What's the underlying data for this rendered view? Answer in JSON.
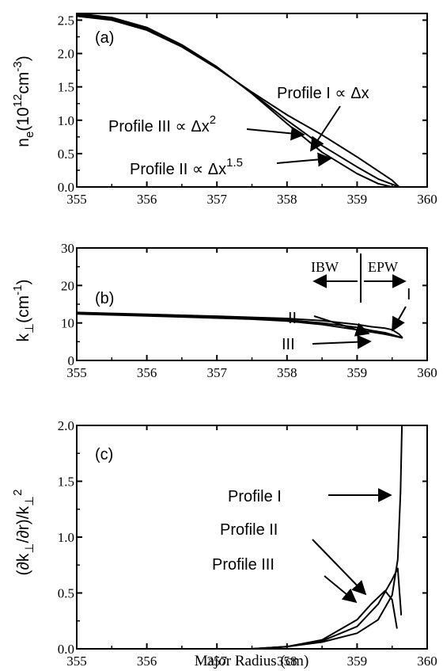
{
  "colors": {
    "ink": "#000000",
    "background": "#ffffff"
  },
  "xlabel": "Major Radius (cm)",
  "chart_data": [
    {
      "type": "line",
      "panel_label": "(a)",
      "ylabel": "n_e(10^12 cm^-3)",
      "ylabel_parts": {
        "main": "n",
        "sub": "e",
        "open": "(10",
        "sup": "12",
        "mid": "cm",
        "sup2": "-3",
        "close": ")"
      },
      "xlim": [
        355,
        360
      ],
      "ylim": [
        0,
        2.6
      ],
      "x_ticks": [
        "355",
        "356",
        "357",
        "358",
        "359",
        "360"
      ],
      "y_ticks": [
        {
          "v": 0.0,
          "t": "0.0"
        },
        {
          "v": 0.5,
          "t": "0.5"
        },
        {
          "v": 1.0,
          "t": "1.0"
        },
        {
          "v": 1.5,
          "t": "1.5"
        },
        {
          "v": 2.0,
          "t": "2.0"
        },
        {
          "v": 2.5,
          "t": "2.5"
        }
      ],
      "grid": false,
      "series": [
        {
          "name": "Profile I",
          "x": [
            355,
            355.5,
            356,
            356.5,
            357,
            357.5,
            358,
            358.5,
            359,
            359.5,
            359.6
          ],
          "y": [
            2.56,
            2.5,
            2.35,
            2.1,
            1.78,
            1.42,
            1.08,
            0.78,
            0.45,
            0.1,
            0.0
          ]
        },
        {
          "name": "Profile II",
          "x": [
            355,
            355.5,
            356,
            356.5,
            357,
            357.5,
            358,
            358.5,
            359,
            359.3,
            359.5,
            359.6
          ],
          "y": [
            2.58,
            2.52,
            2.37,
            2.12,
            1.79,
            1.41,
            1.0,
            0.62,
            0.3,
            0.12,
            0.04,
            0.0
          ]
        },
        {
          "name": "Profile III",
          "x": [
            355,
            355.5,
            356,
            356.5,
            357,
            357.5,
            358,
            358.5,
            359,
            359.3,
            359.5
          ],
          "y": [
            2.6,
            2.54,
            2.39,
            2.13,
            1.8,
            1.4,
            0.95,
            0.52,
            0.2,
            0.05,
            0.0
          ]
        }
      ],
      "annotations": [
        {
          "text": "Profile I",
          "math": "∝ Δx",
          "sup": ""
        },
        {
          "text": "Profile III",
          "math": "∝ Δx",
          "sup": "2"
        },
        {
          "text": "Profile II",
          "math": "∝ Δx",
          "sup": "1.5"
        }
      ]
    },
    {
      "type": "line",
      "panel_label": "(b)",
      "ylabel": "k_⊥(cm^-1)",
      "ylabel_parts": {
        "main": "k",
        "sub": "⊥",
        "open": "(cm",
        "sup": "-1",
        "close": ")"
      },
      "xlim": [
        355,
        360
      ],
      "ylim": [
        0,
        30
      ],
      "x_ticks": [
        "355",
        "356",
        "357",
        "358",
        "359",
        "360"
      ],
      "y_ticks": [
        {
          "v": 0,
          "t": "0"
        },
        {
          "v": 10,
          "t": "10"
        },
        {
          "v": 20,
          "t": "20"
        },
        {
          "v": 30,
          "t": "30"
        }
      ],
      "grid": false,
      "series": [
        {
          "name": "I",
          "x": [
            355,
            356,
            357,
            357.5,
            358,
            358.5,
            359,
            359.2,
            359.4,
            359.5,
            359.6,
            359.65
          ],
          "y": [
            12.8,
            12.3,
            11.8,
            11.5,
            11.2,
            10.6,
            9.6,
            9.0,
            8.6,
            8.2,
            7.0,
            6.0
          ]
        },
        {
          "name": "II",
          "x": [
            355,
            356,
            357,
            357.5,
            358,
            358.5,
            359,
            359.2,
            359.4,
            359.55,
            359.65
          ],
          "y": [
            12.6,
            12.1,
            11.5,
            11.2,
            10.8,
            10.0,
            8.8,
            8.0,
            7.4,
            6.6,
            6.0
          ]
        },
        {
          "name": "III",
          "x": [
            355,
            356,
            357,
            357.5,
            358,
            358.5,
            359,
            359.2,
            359.4,
            359.55,
            359.65
          ],
          "y": [
            12.4,
            11.9,
            11.3,
            11.0,
            10.5,
            9.6,
            8.2,
            7.6,
            7.0,
            6.4,
            6.0
          ]
        }
      ],
      "annotations": [
        {
          "text": "IBW"
        },
        {
          "text": "EPW"
        },
        {
          "text": "I"
        },
        {
          "text": "II"
        },
        {
          "text": "III"
        }
      ]
    },
    {
      "type": "line",
      "panel_label": "(c)",
      "ylabel": "(∂k_⊥/∂r)/k_⊥^2",
      "ylabel_parts": {
        "open": "(∂k",
        "sub": "⊥",
        "mid": "/∂r)/k",
        "sub2": "⊥",
        "sup": "2"
      },
      "xlim": [
        355,
        360
      ],
      "ylim": [
        0,
        2.0
      ],
      "x_ticks": [
        "355",
        "356",
        "357",
        "358",
        "359",
        "360"
      ],
      "y_ticks": [
        {
          "v": 0.0,
          "t": "0.0"
        },
        {
          "v": 0.5,
          "t": "0.5"
        },
        {
          "v": 1.0,
          "t": "1.0"
        },
        {
          "v": 1.5,
          "t": "1.5"
        },
        {
          "v": 2.0,
          "t": "2.0"
        }
      ],
      "grid": false,
      "series": [
        {
          "name": "Profile I",
          "x": [
            357.5,
            358,
            358.5,
            359,
            359.3,
            359.5,
            359.58,
            359.62,
            359.64
          ],
          "y": [
            0.0,
            0.02,
            0.06,
            0.14,
            0.26,
            0.48,
            0.8,
            1.4,
            2.0
          ]
        },
        {
          "name": "Profile II",
          "x": [
            357.5,
            358,
            358.5,
            359,
            359.3,
            359.5,
            359.58,
            359.63
          ],
          "y": [
            0.0,
            0.02,
            0.07,
            0.2,
            0.4,
            0.62,
            0.72,
            0.3
          ]
        },
        {
          "name": "Profile III",
          "x": [
            357.5,
            358,
            358.5,
            359,
            359.2,
            359.4,
            359.5,
            359.57
          ],
          "y": [
            0.0,
            0.02,
            0.08,
            0.26,
            0.4,
            0.52,
            0.44,
            0.18
          ]
        }
      ],
      "annotations": [
        {
          "text": "Profile I"
        },
        {
          "text": "Profile II"
        },
        {
          "text": "Profile III"
        }
      ]
    }
  ]
}
